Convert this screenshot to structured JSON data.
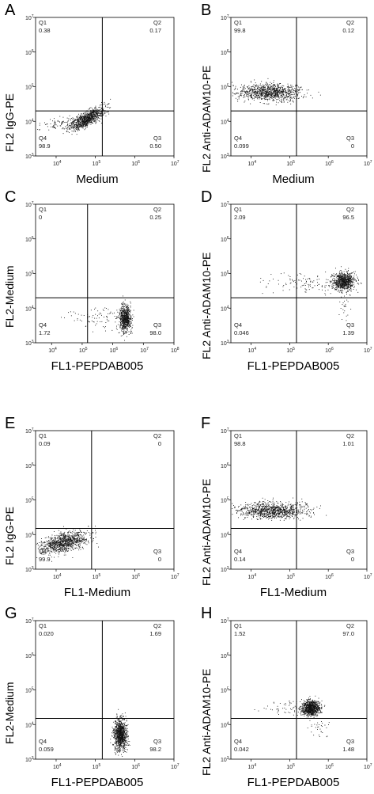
{
  "chart_data": [
    {
      "letter": "A",
      "type": "scatter",
      "ylabel": "FL2 IgG-PE",
      "xlabel": "Medium",
      "quadrants": {
        "Q1": {
          "label": "Q1",
          "value": "0.38"
        },
        "Q2": {
          "label": "Q2",
          "value": "0.17"
        },
        "Q3": {
          "label": "Q3",
          "value": "0.50"
        },
        "Q4": {
          "label": "Q4",
          "value": "98.9"
        }
      },
      "gate": {
        "x": 150000,
        "y": 20000
      },
      "populations": [
        {
          "cx": 60000,
          "cy": 12000,
          "sx": 0.22,
          "sy": 0.1,
          "tilt": 0.55,
          "n": 900
        },
        {
          "cx": 15000,
          "cy": 9000,
          "sx": 0.35,
          "sy": 0.1,
          "tilt": 0.1,
          "n": 120
        }
      ],
      "x_ticks": [
        "10^4",
        "10^5",
        "10^6",
        "10^7"
      ],
      "y_ticks": [
        "10^3",
        "10^4",
        "10^5",
        "10^6",
        "10^7"
      ],
      "xlim": [
        3000,
        10000000.0
      ],
      "ylim": [
        1000,
        10000000.0
      ]
    },
    {
      "letter": "B",
      "type": "scatter",
      "ylabel": "FL2 Anti-ADAM10-PE",
      "xlabel": "Medium",
      "quadrants": {
        "Q1": {
          "label": "Q1",
          "value": "99.8"
        },
        "Q2": {
          "label": "Q2",
          "value": "0.12"
        },
        "Q3": {
          "label": "Q3",
          "value": "0"
        },
        "Q4": {
          "label": "Q4",
          "value": "0.099"
        }
      },
      "gate": {
        "x": 150000,
        "y": 20000
      },
      "populations": [
        {
          "cx": 30000,
          "cy": 70000,
          "sx": 0.4,
          "sy": 0.12,
          "tilt": 0.0,
          "n": 1000
        }
      ],
      "x_ticks": [
        "10^4",
        "10^5",
        "10^6",
        "10^7"
      ],
      "y_ticks": [
        "10^3",
        "10^4",
        "10^5",
        "10^6",
        "10^7"
      ],
      "xlim": [
        3000,
        10000000.0
      ],
      "ylim": [
        1000,
        10000000.0
      ]
    },
    {
      "letter": "C",
      "type": "scatter",
      "ylabel": "FL2-Medium",
      "xlabel": "FL1-PEPDAB005",
      "quadrants": {
        "Q1": {
          "label": "Q1",
          "value": "0"
        },
        "Q2": {
          "label": "Q2",
          "value": "0.25"
        },
        "Q3": {
          "label": "Q3",
          "value": "98.0"
        },
        "Q4": {
          "label": "Q4",
          "value": "1.72"
        }
      },
      "gate": {
        "x": 150000,
        "y": 20000
      },
      "populations": [
        {
          "cx": 2500000,
          "cy": 5000,
          "sx": 0.1,
          "sy": 0.2,
          "tilt": 0.0,
          "n": 700
        },
        {
          "cx": 300000,
          "cy": 6000,
          "sx": 0.5,
          "sy": 0.15,
          "tilt": 0.0,
          "n": 80
        }
      ],
      "x_ticks": [
        "10^4",
        "10^5",
        "10^6",
        "10^7",
        "10^8"
      ],
      "y_ticks": [
        "10^3",
        "10^4",
        "10^5",
        "10^6",
        "10^7"
      ],
      "xlim": [
        3000,
        100000000.0
      ],
      "ylim": [
        1000,
        10000000.0
      ]
    },
    {
      "letter": "D",
      "type": "scatter",
      "ylabel": "FL2 Anti-ADAM10-PE",
      "xlabel": "FL1-PEPDAB005",
      "quadrants": {
        "Q1": {
          "label": "Q1",
          "value": "2.09"
        },
        "Q2": {
          "label": "Q2",
          "value": "96.5"
        },
        "Q3": {
          "label": "Q3",
          "value": "1.39"
        },
        "Q4": {
          "label": "Q4",
          "value": "0.046"
        }
      },
      "gate": {
        "x": 150000,
        "y": 20000
      },
      "populations": [
        {
          "cx": 2500000,
          "cy": 60000,
          "sx": 0.14,
          "sy": 0.13,
          "tilt": 0.0,
          "n": 800
        },
        {
          "cx": 300000,
          "cy": 50000,
          "sx": 0.55,
          "sy": 0.15,
          "tilt": 0.0,
          "n": 120
        },
        {
          "cx": 2500000,
          "cy": 12000,
          "sx": 0.08,
          "sy": 0.15,
          "tilt": 0.0,
          "n": 25
        }
      ],
      "x_ticks": [
        "10^4",
        "10^5",
        "10^6",
        "10^7"
      ],
      "y_ticks": [
        "10^3",
        "10^4",
        "10^5",
        "10^6",
        "10^7"
      ],
      "xlim": [
        3000,
        10000000.0
      ],
      "ylim": [
        1000,
        10000000.0
      ]
    },
    {
      "letter": "E",
      "type": "scatter",
      "ylabel": "FL2 IgG-PE",
      "xlabel": "FL1-Medium",
      "quadrants": {
        "Q1": {
          "label": "Q1",
          "value": "0.09"
        },
        "Q2": {
          "label": "Q2",
          "value": "0"
        },
        "Q3": {
          "label": "Q3",
          "value": "0"
        },
        "Q4": {
          "label": "Q4",
          "value": "99.9"
        }
      },
      "gate": {
        "x": 80000,
        "y": 15000
      },
      "populations": [
        {
          "cx": 15000,
          "cy": 6000,
          "sx": 0.3,
          "sy": 0.13,
          "tilt": 0.25,
          "n": 1000
        }
      ],
      "x_ticks": [
        "10^4",
        "10^5",
        "10^6",
        "10^7"
      ],
      "y_ticks": [
        "10^3",
        "10^4",
        "10^5",
        "10^6",
        "10^7"
      ],
      "xlim": [
        3000,
        10000000.0
      ],
      "ylim": [
        1000,
        10000000.0
      ]
    },
    {
      "letter": "F",
      "type": "scatter",
      "ylabel": "FL2 Anti-ADAM10-PE",
      "xlabel": "FL1-Medium",
      "quadrants": {
        "Q1": {
          "label": "Q1",
          "value": "98.8"
        },
        "Q2": {
          "label": "Q2",
          "value": "1.01"
        },
        "Q3": {
          "label": "Q3",
          "value": "0"
        },
        "Q4": {
          "label": "Q4",
          "value": "0.14"
        }
      },
      "gate": {
        "x": 150000,
        "y": 15000
      },
      "populations": [
        {
          "cx": 35000,
          "cy": 50000,
          "sx": 0.45,
          "sy": 0.11,
          "tilt": 0.0,
          "n": 1000
        }
      ],
      "x_ticks": [
        "10^4",
        "10^5",
        "10^6",
        "10^7"
      ],
      "y_ticks": [
        "10^3",
        "10^4",
        "10^5",
        "10^6",
        "10^7"
      ],
      "xlim": [
        3000,
        10000000.0
      ],
      "ylim": [
        1000,
        10000000.0
      ]
    },
    {
      "letter": "G",
      "type": "scatter",
      "ylabel": "FL2-Medium",
      "xlabel": "FL1-PEPDAB005",
      "quadrants": {
        "Q1": {
          "label": "Q1",
          "value": "0.020"
        },
        "Q2": {
          "label": "Q2",
          "value": "1.69"
        },
        "Q3": {
          "label": "Q3",
          "value": "98.2"
        },
        "Q4": {
          "label": "Q4",
          "value": "0.059"
        }
      },
      "gate": {
        "x": 150000,
        "y": 15000
      },
      "populations": [
        {
          "cx": 420000,
          "cy": 5000,
          "sx": 0.08,
          "sy": 0.22,
          "tilt": 0.0,
          "n": 1000
        }
      ],
      "x_ticks": [
        "10^4",
        "10^5",
        "10^6",
        "10^7"
      ],
      "y_ticks": [
        "10^3",
        "10^4",
        "10^5",
        "10^6",
        "10^7"
      ],
      "xlim": [
        3000,
        10000000.0
      ],
      "ylim": [
        1000,
        10000000.0
      ]
    },
    {
      "letter": "H",
      "type": "scatter",
      "ylabel": "FL2 Anti-ADAM10-PE",
      "xlabel": "FL1-PEPDAB005",
      "quadrants": {
        "Q1": {
          "label": "Q1",
          "value": "1.52"
        },
        "Q2": {
          "label": "Q2",
          "value": "97.0"
        },
        "Q3": {
          "label": "Q3",
          "value": "1.48"
        },
        "Q4": {
          "label": "Q4",
          "value": "0.042"
        }
      },
      "gate": {
        "x": 150000,
        "y": 15000
      },
      "populations": [
        {
          "cx": 350000,
          "cy": 30000,
          "sx": 0.11,
          "sy": 0.11,
          "tilt": 0.0,
          "n": 900
        },
        {
          "cx": 90000,
          "cy": 30000,
          "sx": 0.35,
          "sy": 0.1,
          "tilt": 0.0,
          "n": 60
        },
        {
          "cx": 600000,
          "cy": 9000,
          "sx": 0.15,
          "sy": 0.15,
          "tilt": 0.0,
          "n": 30
        }
      ],
      "x_ticks": [
        "10^4",
        "10^5",
        "10^6",
        "10^7"
      ],
      "y_ticks": [
        "10^3",
        "10^4",
        "10^5",
        "10^6",
        "10^7"
      ],
      "xlim": [
        3000,
        10000000.0
      ],
      "ylim": [
        1000,
        10000000.0
      ]
    }
  ]
}
